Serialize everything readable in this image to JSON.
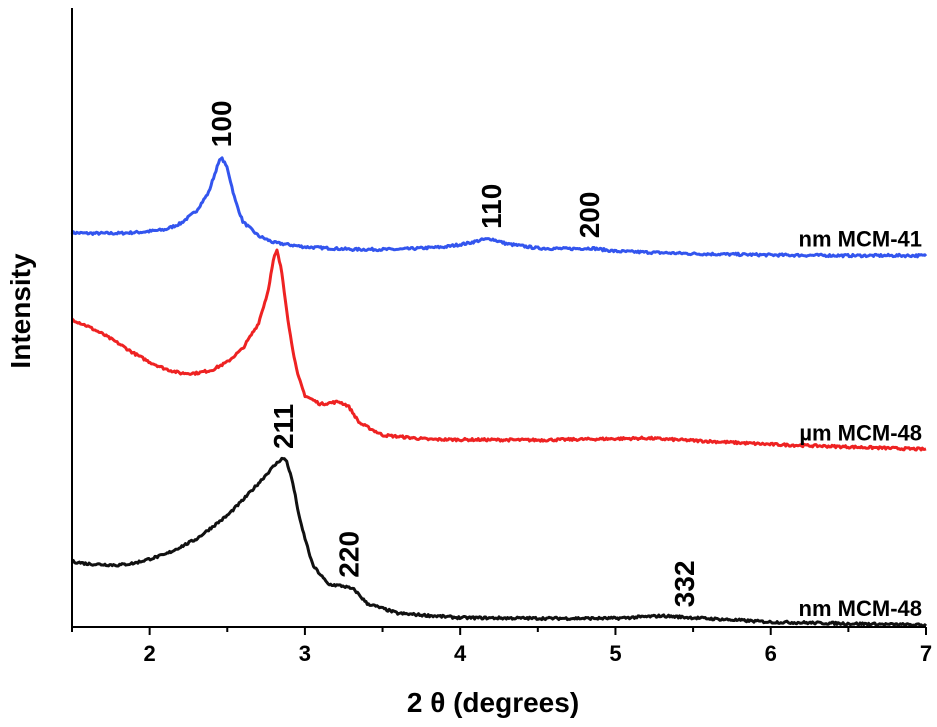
{
  "chart_data": {
    "type": "line",
    "title": "",
    "xlabel": "2 θ (degrees)",
    "ylabel": "Intensity",
    "xlim": [
      1.5,
      7
    ],
    "ylim": [
      0,
      1
    ],
    "x_ticks": [
      2,
      3,
      4,
      5,
      6,
      7
    ],
    "y_ticks_shown": false,
    "grid": false,
    "legend": "inline labels at right end of each curve",
    "series": [
      {
        "name": "nm MCM-41",
        "color": "#3355ee",
        "points": [
          [
            1.5,
            0.637
          ],
          [
            1.6,
            0.636
          ],
          [
            1.8,
            0.636
          ],
          [
            1.95,
            0.638
          ],
          [
            2.1,
            0.642
          ],
          [
            2.2,
            0.652
          ],
          [
            2.3,
            0.672
          ],
          [
            2.38,
            0.702
          ],
          [
            2.43,
            0.74
          ],
          [
            2.46,
            0.759
          ],
          [
            2.5,
            0.742
          ],
          [
            2.55,
            0.69
          ],
          [
            2.6,
            0.655
          ],
          [
            2.7,
            0.632
          ],
          [
            2.8,
            0.621
          ],
          [
            3.0,
            0.614
          ],
          [
            3.3,
            0.61
          ],
          [
            3.6,
            0.61
          ],
          [
            3.9,
            0.614
          ],
          [
            4.05,
            0.62
          ],
          [
            4.15,
            0.626
          ],
          [
            4.2,
            0.627
          ],
          [
            4.3,
            0.619
          ],
          [
            4.5,
            0.612
          ],
          [
            4.7,
            0.611
          ],
          [
            4.85,
            0.612
          ],
          [
            5.0,
            0.607
          ],
          [
            5.5,
            0.603
          ],
          [
            6.0,
            0.601
          ],
          [
            6.5,
            0.6
          ],
          [
            7.0,
            0.6
          ]
        ],
        "peaks": [
          {
            "label": "100",
            "x": 2.46
          },
          {
            "label": "110",
            "x": 4.2
          },
          {
            "label": "200",
            "x": 4.83
          }
        ]
      },
      {
        "name": "µm MCM-48",
        "color": "#ee2222",
        "points": [
          [
            1.5,
            0.497
          ],
          [
            1.6,
            0.486
          ],
          [
            1.7,
            0.473
          ],
          [
            1.8,
            0.458
          ],
          [
            1.9,
            0.442
          ],
          [
            2.0,
            0.428
          ],
          [
            2.1,
            0.417
          ],
          [
            2.2,
            0.41
          ],
          [
            2.3,
            0.41
          ],
          [
            2.4,
            0.415
          ],
          [
            2.5,
            0.428
          ],
          [
            2.6,
            0.45
          ],
          [
            2.7,
            0.49
          ],
          [
            2.76,
            0.54
          ],
          [
            2.8,
            0.596
          ],
          [
            2.82,
            0.608
          ],
          [
            2.85,
            0.575
          ],
          [
            2.9,
            0.48
          ],
          [
            2.95,
            0.41
          ],
          [
            3.0,
            0.374
          ],
          [
            3.1,
            0.36
          ],
          [
            3.22,
            0.364
          ],
          [
            3.28,
            0.357
          ],
          [
            3.35,
            0.33
          ],
          [
            3.5,
            0.31
          ],
          [
            3.8,
            0.303
          ],
          [
            4.5,
            0.302
          ],
          [
            5.2,
            0.305
          ],
          [
            6.0,
            0.295
          ],
          [
            7.0,
            0.287
          ]
        ],
        "peaks": []
      },
      {
        "name": "nm MCM-48",
        "color": "#111111",
        "points": [
          [
            1.5,
            0.106
          ],
          [
            1.6,
            0.102
          ],
          [
            1.8,
            0.1
          ],
          [
            1.9,
            0.103
          ],
          [
            2.1,
            0.117
          ],
          [
            2.3,
            0.142
          ],
          [
            2.5,
            0.18
          ],
          [
            2.6,
            0.205
          ],
          [
            2.7,
            0.232
          ],
          [
            2.8,
            0.26
          ],
          [
            2.85,
            0.272
          ],
          [
            2.88,
            0.27
          ],
          [
            2.92,
            0.235
          ],
          [
            2.97,
            0.17
          ],
          [
            3.05,
            0.1
          ],
          [
            3.15,
            0.069
          ],
          [
            3.25,
            0.066
          ],
          [
            3.32,
            0.06
          ],
          [
            3.4,
            0.038
          ],
          [
            3.6,
            0.022
          ],
          [
            4.0,
            0.015
          ],
          [
            4.5,
            0.014
          ],
          [
            5.0,
            0.014
          ],
          [
            5.3,
            0.018
          ],
          [
            5.5,
            0.015
          ],
          [
            6.0,
            0.008
          ],
          [
            7.0,
            0.003
          ]
        ],
        "peaks": [
          {
            "label": "211",
            "x": 2.86
          },
          {
            "label": "220",
            "x": 3.28
          },
          {
            "label": "332",
            "x": 5.44
          }
        ]
      }
    ]
  }
}
